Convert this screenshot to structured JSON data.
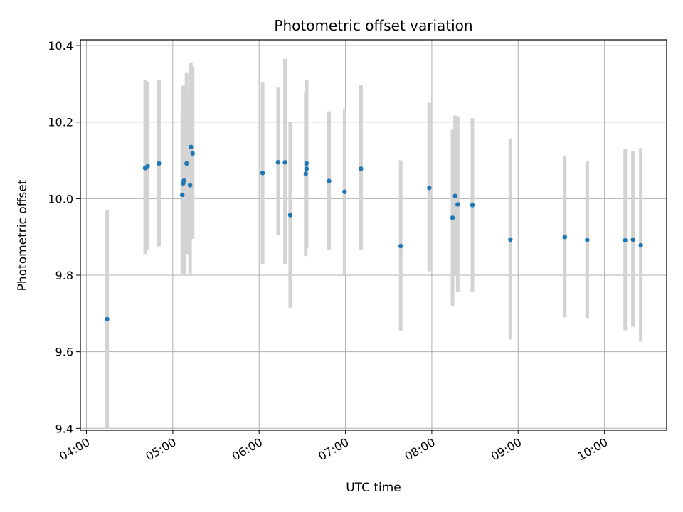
{
  "chart_data": {
    "type": "scatter",
    "title": "Photometric offset variation",
    "xlabel": "UTC time",
    "ylabel": "Photometric offset",
    "x_unit": "hours UTC",
    "xlim": [
      3.93,
      10.72
    ],
    "ylim": [
      9.395,
      10.415
    ],
    "xticks": [
      4,
      5,
      6,
      7,
      8,
      9,
      10
    ],
    "xtick_labels": [
      "04:00",
      "05:00",
      "06:00",
      "07:00",
      "08:00",
      "09:00",
      "10:00"
    ],
    "yticks": [
      9.4,
      9.6,
      9.8,
      10.0,
      10.2,
      10.4
    ],
    "ytick_labels": [
      "9.4",
      "9.6",
      "9.8",
      "10.0",
      "10.2",
      "10.4"
    ],
    "grid": true,
    "point_color": "#1f77b4",
    "errorbar_color": "#d3d3d3",
    "points": [
      {
        "x": 4.24,
        "y": 9.685,
        "lo": 9.4,
        "hi": 9.97
      },
      {
        "x": 4.68,
        "y": 10.08,
        "lo": 9.855,
        "hi": 10.31
      },
      {
        "x": 4.71,
        "y": 10.085,
        "lo": 9.865,
        "hi": 10.305
      },
      {
        "x": 4.84,
        "y": 10.092,
        "lo": 9.875,
        "hi": 10.31
      },
      {
        "x": 5.11,
        "y": 10.01,
        "lo": 9.8,
        "hi": 10.22
      },
      {
        "x": 5.12,
        "y": 10.04,
        "lo": 9.8,
        "hi": 10.295
      },
      {
        "x": 5.13,
        "y": 10.047,
        "lo": 9.8,
        "hi": 10.295
      },
      {
        "x": 5.16,
        "y": 10.092,
        "lo": 9.855,
        "hi": 10.33
      },
      {
        "x": 5.2,
        "y": 10.035,
        "lo": 9.8,
        "hi": 10.27
      },
      {
        "x": 5.21,
        "y": 10.135,
        "lo": 9.92,
        "hi": 10.355
      },
      {
        "x": 5.23,
        "y": 10.118,
        "lo": 9.895,
        "hi": 10.345
      },
      {
        "x": 6.04,
        "y": 10.067,
        "lo": 9.83,
        "hi": 10.305
      },
      {
        "x": 6.22,
        "y": 10.095,
        "lo": 9.905,
        "hi": 10.29
      },
      {
        "x": 6.3,
        "y": 10.095,
        "lo": 9.83,
        "hi": 10.365
      },
      {
        "x": 6.36,
        "y": 9.957,
        "lo": 9.715,
        "hi": 10.2
      },
      {
        "x": 6.54,
        "y": 10.065,
        "lo": 9.85,
        "hi": 10.28
      },
      {
        "x": 6.55,
        "y": 10.078,
        "lo": 9.87,
        "hi": 10.31
      },
      {
        "x": 6.55,
        "y": 10.092,
        "lo": 9.87,
        "hi": 10.31
      },
      {
        "x": 6.81,
        "y": 10.046,
        "lo": 9.865,
        "hi": 10.228
      },
      {
        "x": 6.99,
        "y": 10.018,
        "lo": 9.8,
        "hi": 10.235
      },
      {
        "x": 7.18,
        "y": 10.078,
        "lo": 9.865,
        "hi": 10.297
      },
      {
        "x": 7.64,
        "y": 9.876,
        "lo": 9.655,
        "hi": 10.1
      },
      {
        "x": 7.97,
        "y": 10.028,
        "lo": 9.81,
        "hi": 10.25
      },
      {
        "x": 8.24,
        "y": 9.95,
        "lo": 9.72,
        "hi": 10.18
      },
      {
        "x": 8.27,
        "y": 10.007,
        "lo": 9.8,
        "hi": 10.217
      },
      {
        "x": 8.3,
        "y": 9.985,
        "lo": 9.757,
        "hi": 10.215
      },
      {
        "x": 8.47,
        "y": 9.983,
        "lo": 9.756,
        "hi": 10.21
      },
      {
        "x": 8.91,
        "y": 9.893,
        "lo": 9.632,
        "hi": 10.157
      },
      {
        "x": 9.54,
        "y": 9.9,
        "lo": 9.69,
        "hi": 10.11
      },
      {
        "x": 9.8,
        "y": 9.892,
        "lo": 9.688,
        "hi": 10.097
      },
      {
        "x": 10.24,
        "y": 9.891,
        "lo": 9.656,
        "hi": 10.13
      },
      {
        "x": 10.33,
        "y": 9.893,
        "lo": 9.665,
        "hi": 10.125
      },
      {
        "x": 10.42,
        "y": 9.878,
        "lo": 9.626,
        "hi": 10.132
      }
    ]
  }
}
